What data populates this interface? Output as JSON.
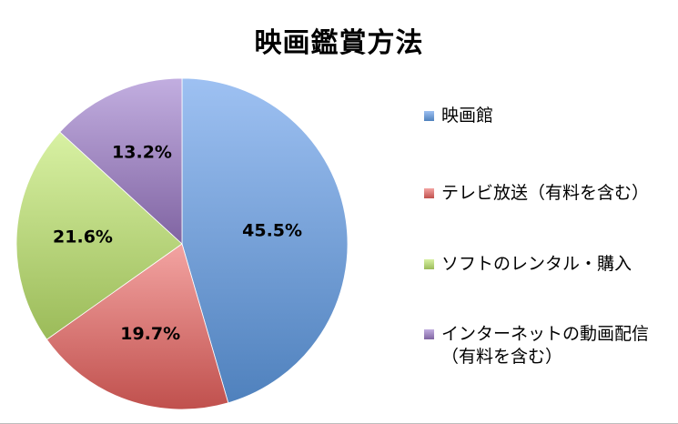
{
  "chart_data": {
    "type": "pie",
    "title": "映画鑑賞方法",
    "legend_position": "right",
    "slices": [
      {
        "name": "映画館",
        "value": 45.5,
        "label": "45.5%",
        "color": "#4f81bd",
        "light": "#9ec1f2"
      },
      {
        "name": "テレビ放送（有料を含む）",
        "value": 19.7,
        "label": "19.7%",
        "color": "#c0504d",
        "light": "#f3a4a2"
      },
      {
        "name": "ソフトのレンタル・購入",
        "value": 21.6,
        "label": "21.6%",
        "color": "#9bbb59",
        "light": "#d8f1a3"
      },
      {
        "name": "インターネットの動画配信\n（有料を含む）",
        "value": 13.2,
        "label": "13.2%",
        "color": "#8064a2",
        "light": "#c2aee0"
      }
    ]
  }
}
